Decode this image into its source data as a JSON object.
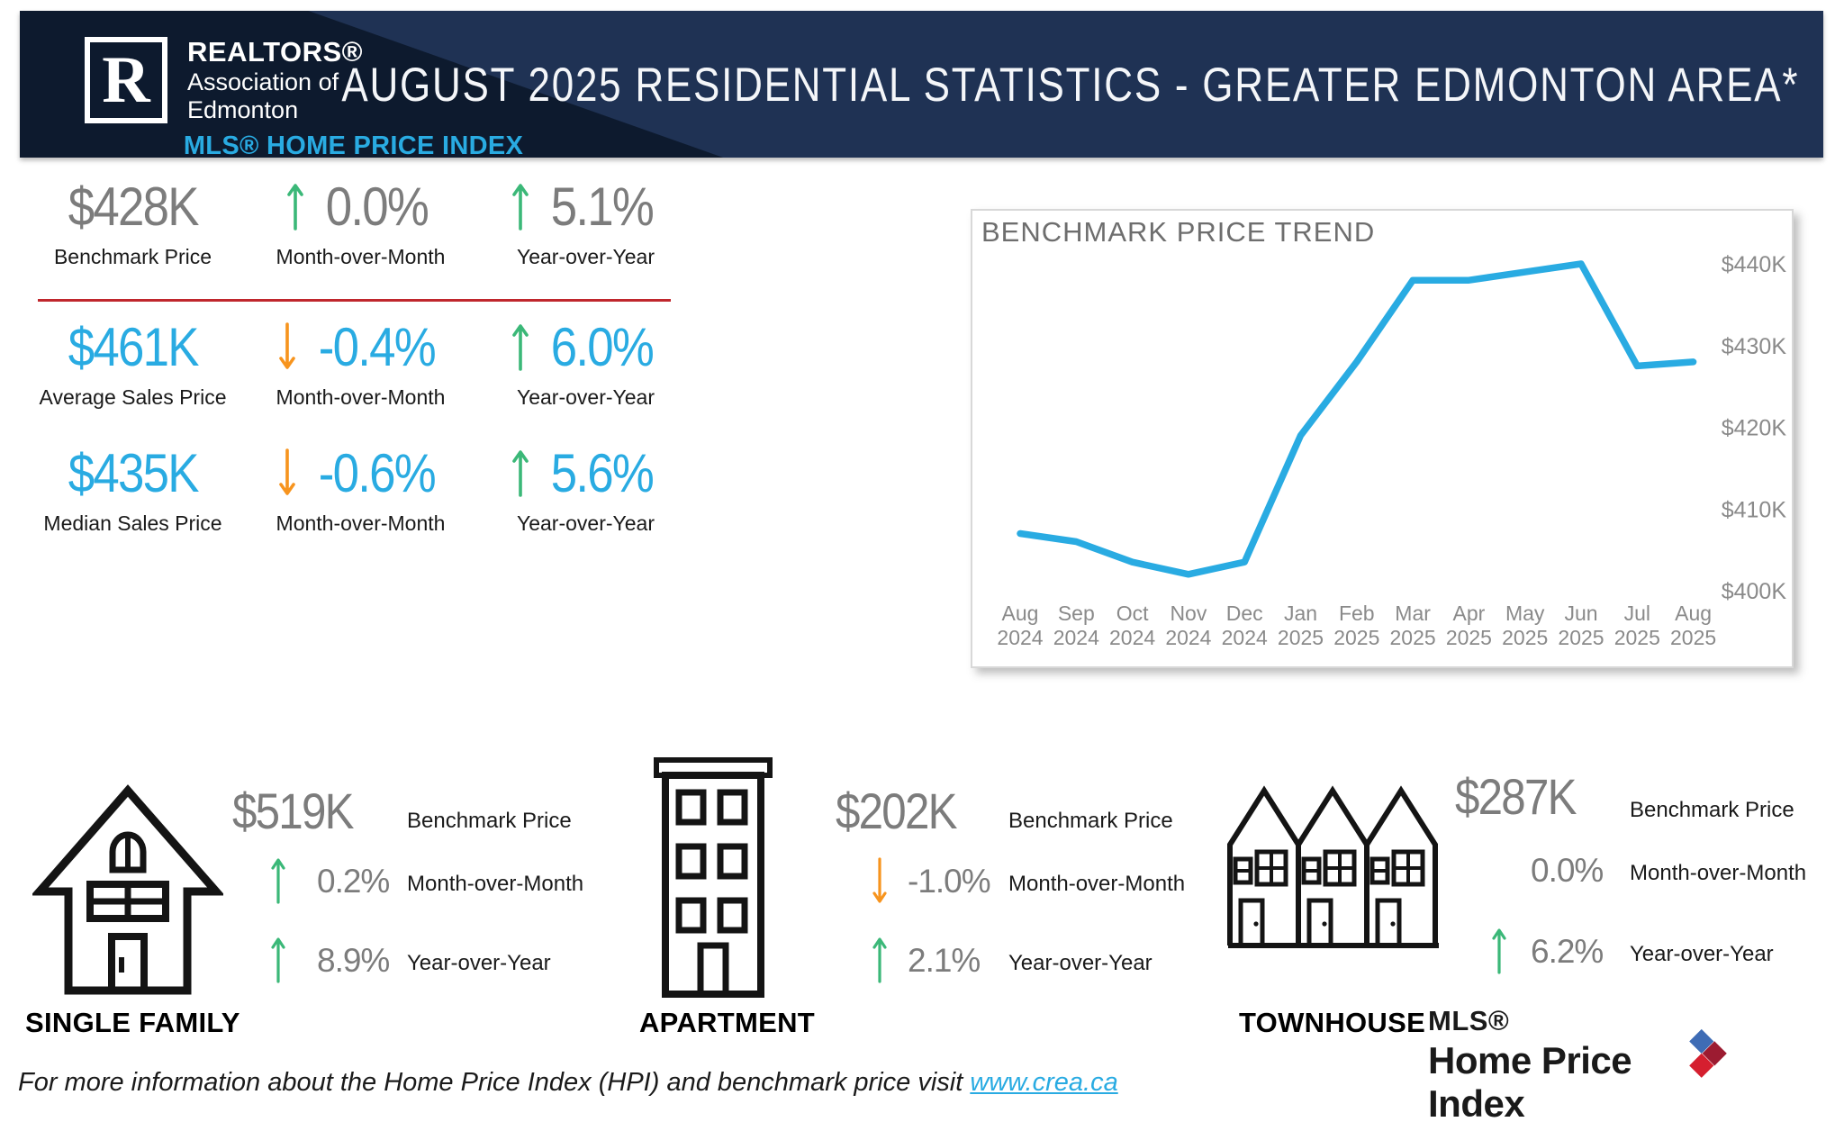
{
  "header": {
    "logo": {
      "r_letter": "R",
      "brand": "REALTORS®",
      "line1": "Association of",
      "line2": "Edmonton"
    },
    "title": "AUGUST 2025 RESIDENTIAL STATISTICS - GREATER EDMONTON AREA*"
  },
  "hpi": {
    "title": "MLS® HOME PRICE INDEX",
    "rows": [
      {
        "value": "$428K",
        "label": "Benchmark Price",
        "mom_value": "0.0%",
        "mom_dir": "up",
        "mom_label": "Month-over-Month",
        "yoy_value": "5.1%",
        "yoy_dir": "up",
        "yoy_label": "Year-over-Year"
      },
      {
        "value": "$461K",
        "label": "Average Sales Price",
        "mom_value": "-0.4%",
        "mom_dir": "down",
        "mom_label": "Month-over-Month",
        "yoy_value": "6.0%",
        "yoy_dir": "up",
        "yoy_label": "Year-over-Year"
      },
      {
        "value": "$435K",
        "label": "Median Sales Price",
        "mom_value": "-0.6%",
        "mom_dir": "down",
        "mom_label": "Month-over-Month",
        "yoy_value": "5.6%",
        "yoy_dir": "up",
        "yoy_label": "Year-over-Year"
      }
    ]
  },
  "chart_data": {
    "type": "line",
    "title": "BENCHMARK PRICE TREND",
    "x": [
      "Aug 2024",
      "Sep 2024",
      "Oct 2024",
      "Nov 2024",
      "Dec 2024",
      "Jan 2025",
      "Feb 2025",
      "Mar 2025",
      "Apr 2025",
      "May 2025",
      "Jun 2025",
      "Jul 2025",
      "Aug 2025"
    ],
    "values_k": [
      407,
      406,
      403.5,
      402,
      403.5,
      419,
      428,
      438,
      438,
      439,
      440,
      427.5,
      428
    ],
    "y_ticks": [
      "$440K",
      "$430K",
      "$420K",
      "$410K",
      "$400K"
    ],
    "tick_values_k": [
      440,
      430,
      420,
      410,
      400
    ],
    "ylim_k": [
      398,
      444
    ],
    "xlabel": "",
    "ylabel": "",
    "grid": false,
    "legend": "none",
    "y_axis_side": "right",
    "line_color": "#29ABE2"
  },
  "segments": [
    {
      "name": "SINGLE FAMILY",
      "benchmark_value": "$519K",
      "benchmark_label": "Benchmark Price",
      "mom_value": "0.2%",
      "mom_dir": "up",
      "mom_label": "Month-over-Month",
      "yoy_value": "8.9%",
      "yoy_dir": "up",
      "yoy_label": "Year-over-Year"
    },
    {
      "name": "APARTMENT",
      "benchmark_value": "$202K",
      "benchmark_label": "Benchmark Price",
      "mom_value": "-1.0%",
      "mom_dir": "down",
      "mom_label": "Month-over-Month",
      "yoy_value": "2.1%",
      "yoy_dir": "up",
      "yoy_label": "Year-over-Year"
    },
    {
      "name": "TOWNHOUSE",
      "benchmark_value": "$287K",
      "benchmark_label": "Benchmark Price",
      "mom_value": "0.0%",
      "mom_dir": "none",
      "mom_label": "Month-over-Month",
      "yoy_value": "6.2%",
      "yoy_dir": "up",
      "yoy_label": "Year-over-Year"
    }
  ],
  "footer": {
    "text": "For more information about the Home Price Index (HPI) and benchmark price visit ",
    "link": "www.crea.ca",
    "logo": {
      "line1": "MLS®",
      "line2": "Home Price Index"
    }
  },
  "colors": {
    "accent_blue": "#29ABE2",
    "green": "#3BB878",
    "orange": "#F7941E",
    "divider_red": "#C0272D",
    "value_gray": "#7C7C7C",
    "navy_dark": "#0D1A2E",
    "navy": "#1F3254",
    "mls_diamond_blue": "#3E6CB5",
    "mls_diamond_red": "#D51F2F",
    "mls_diamond_dark_red": "#9C1B31"
  }
}
